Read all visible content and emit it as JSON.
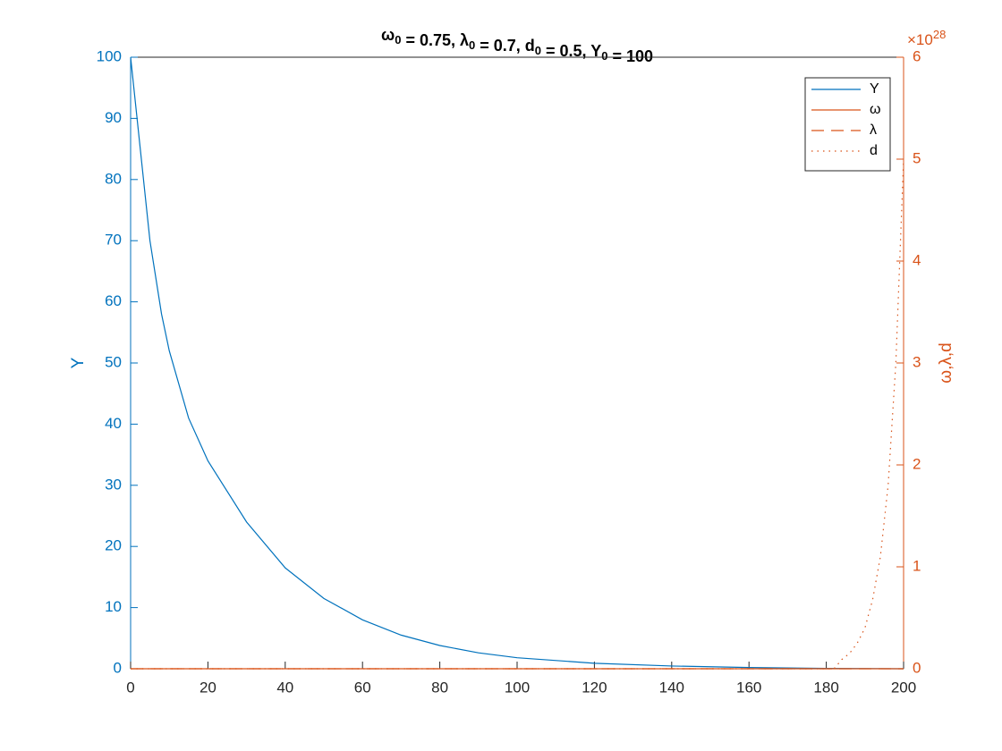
{
  "chart_data": {
    "type": "line",
    "title_parts": [
      {
        "text": "ω",
        "sub": "0"
      },
      {
        "text": " = 0.75, λ",
        "sub": "0"
      },
      {
        "text": " = 0.7, d",
        "sub": "0"
      },
      {
        "text": " = 0.5, Y",
        "sub": "0"
      },
      {
        "text": " = 100"
      }
    ],
    "ylabel": "Y",
    "y2label": "ω,λ,d",
    "y2_multiplier": {
      "base": "×10",
      "exponent": "28"
    },
    "xlim": [
      0,
      200
    ],
    "xticks": [
      0,
      20,
      40,
      60,
      80,
      100,
      120,
      140,
      160,
      180,
      200
    ],
    "ylim": [
      0,
      100
    ],
    "yticks": [
      0,
      10,
      20,
      30,
      40,
      50,
      60,
      70,
      80,
      90,
      100
    ],
    "y2lim": [
      0,
      6e+28
    ],
    "y2ticks": [
      0,
      {
        "value": 1e+28,
        "label": "1"
      },
      {
        "value": 2e+28,
        "label": "2"
      },
      {
        "value": 3e+28,
        "label": "3"
      },
      {
        "value": 4e+28,
        "label": "4"
      },
      {
        "value": 5e+28,
        "label": "5"
      },
      {
        "value": 6e+28,
        "label": "6"
      }
    ],
    "y_color": "#0072BD",
    "y2_color": "#D95319",
    "legend": "upper right",
    "grid": false,
    "series": [
      {
        "name": "Y",
        "color": "#0072BD",
        "linestyle": "solid",
        "x": [
          0,
          2,
          5,
          8,
          10,
          15,
          20,
          30,
          40,
          50,
          60,
          70,
          80,
          90,
          100,
          120,
          140,
          160,
          180,
          200
        ],
        "values": [
          100,
          88,
          70,
          58,
          52,
          41,
          34,
          24,
          16.5,
          11.5,
          8,
          5.5,
          3.8,
          2.6,
          1.8,
          0.9,
          0.45,
          0.2,
          0.05,
          0
        ]
      },
      {
        "name": "ω",
        "color": "#D95319",
        "linestyle": "solid",
        "axis": "y2",
        "x": [
          0,
          200
        ],
        "values": [
          0,
          0
        ]
      },
      {
        "name": "λ",
        "color": "#D95319",
        "linestyle": "dashed",
        "axis": "y2",
        "x": [
          0,
          200
        ],
        "values": [
          0,
          0
        ]
      },
      {
        "name": "d",
        "color": "#D95319",
        "linestyle": "dotted",
        "axis": "y2",
        "x": [
          0,
          182,
          184,
          186,
          188,
          190,
          192,
          194,
          196,
          198,
          200
        ],
        "values": [
          0,
          0,
          9e+26,
          1.5e+27,
          2.5e+27,
          4e+27,
          6.8e+27,
          1.1e+28,
          1.8e+28,
          3e+28,
          5e+28
        ]
      }
    ]
  }
}
